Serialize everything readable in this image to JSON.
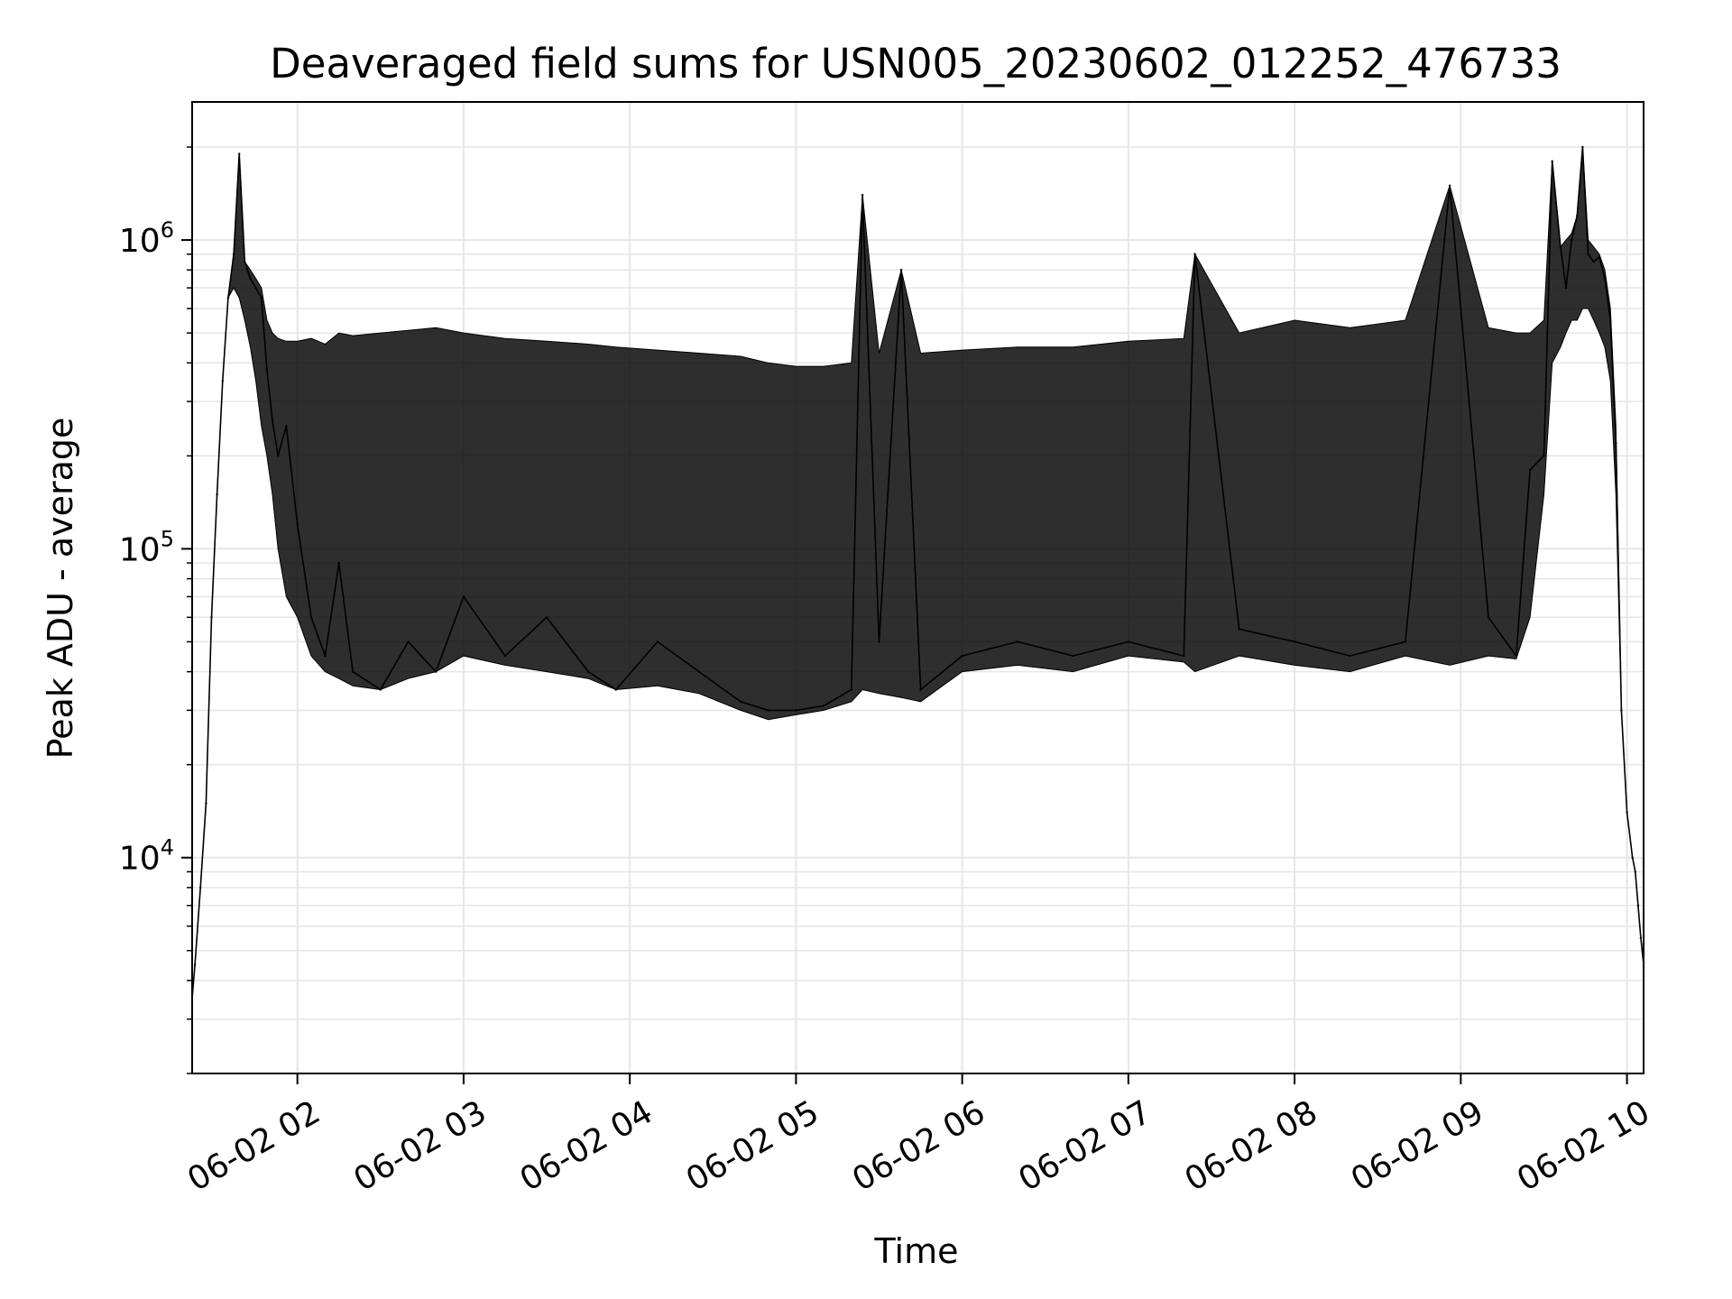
{
  "chart_data": {
    "type": "line",
    "title": "Deaveraged field sums for USN005_20230602_012252_476733",
    "xlabel": "Time",
    "ylabel": "Peak ADU - average",
    "y_scale": "log",
    "grid": true,
    "line_color": "#000000",
    "grid_color": "#e6e6e6",
    "xlim": [
      "2023-06-02 01:22",
      "2023-06-02 10:06"
    ],
    "ylim": [
      2000,
      2800000
    ],
    "x_ticks": [
      {
        "value": "2023-06-02 02:00",
        "label": "06-02 02"
      },
      {
        "value": "2023-06-02 03:00",
        "label": "06-02 03"
      },
      {
        "value": "2023-06-02 04:00",
        "label": "06-02 04"
      },
      {
        "value": "2023-06-02 05:00",
        "label": "06-02 05"
      },
      {
        "value": "2023-06-02 06:00",
        "label": "06-02 06"
      },
      {
        "value": "2023-06-02 07:00",
        "label": "06-02 07"
      },
      {
        "value": "2023-06-02 08:00",
        "label": "06-02 08"
      },
      {
        "value": "2023-06-02 09:00",
        "label": "06-02 09"
      },
      {
        "value": "2023-06-02 10:00",
        "label": "06-02 10"
      }
    ],
    "y_ticks": [
      {
        "value": 10000,
        "base": "10",
        "exponent": "4"
      },
      {
        "value": 100000,
        "base": "10",
        "exponent": "5"
      },
      {
        "value": 1000000,
        "base": "10",
        "exponent": "6"
      }
    ],
    "series": [
      {
        "x": [
          "2023-06-02 01:22",
          "2023-06-02 01:23",
          "2023-06-02 01:25",
          "2023-06-02 01:27",
          "2023-06-02 01:29",
          "2023-06-02 01:31",
          "2023-06-02 01:33",
          "2023-06-02 01:35",
          "2023-06-02 01:37",
          "2023-06-02 01:39",
          "2023-06-02 01:41",
          "2023-06-02 01:43",
          "2023-06-02 01:45",
          "2023-06-02 01:47",
          "2023-06-02 01:49",
          "2023-06-02 01:51",
          "2023-06-02 01:53",
          "2023-06-02 01:56",
          "2023-06-02 02:00",
          "2023-06-02 02:05",
          "2023-06-02 02:10",
          "2023-06-02 02:15",
          "2023-06-02 02:20",
          "2023-06-02 02:30",
          "2023-06-02 02:40",
          "2023-06-02 02:50",
          "2023-06-02 03:00",
          "2023-06-02 03:15",
          "2023-06-02 03:30",
          "2023-06-02 03:45",
          "2023-06-02 03:55",
          "2023-06-02 04:10",
          "2023-06-02 04:25",
          "2023-06-02 04:40",
          "2023-06-02 04:50",
          "2023-06-02 05:00",
          "2023-06-02 05:10",
          "2023-06-02 05:20",
          "2023-06-02 05:24",
          "2023-06-02 05:30",
          "2023-06-02 05:38",
          "2023-06-02 05:45",
          "2023-06-02 06:00",
          "2023-06-02 06:20",
          "2023-06-02 06:40",
          "2023-06-02 07:00",
          "2023-06-02 07:20",
          "2023-06-02 07:24",
          "2023-06-02 07:40",
          "2023-06-02 08:00",
          "2023-06-02 08:20",
          "2023-06-02 08:40",
          "2023-06-02 08:56",
          "2023-06-02 09:10",
          "2023-06-02 09:20",
          "2023-06-02 09:25",
          "2023-06-02 09:30",
          "2023-06-02 09:33",
          "2023-06-02 09:36",
          "2023-06-02 09:38",
          "2023-06-02 09:40",
          "2023-06-02 09:42",
          "2023-06-02 09:44",
          "2023-06-02 09:46",
          "2023-06-02 09:48",
          "2023-06-02 09:50",
          "2023-06-02 09:52",
          "2023-06-02 09:54",
          "2023-06-02 09:56",
          "2023-06-02 09:58",
          "2023-06-02 10:00",
          "2023-06-02 10:02",
          "2023-06-02 10:03",
          "2023-06-02 10:04",
          "2023-06-02 10:05",
          "2023-06-02 10:06"
        ],
        "y": [
          3500,
          4500,
          8000,
          15000,
          60000,
          150000,
          350000,
          650000,
          900000,
          1900000,
          850000,
          750000,
          700000,
          650000,
          380000,
          260000,
          200000,
          250000,
          120000,
          60000,
          45000,
          90000,
          40000,
          35000,
          50000,
          40000,
          70000,
          45000,
          60000,
          40000,
          35000,
          50000,
          40000,
          32000,
          30000,
          30000,
          31000,
          35000,
          1400000,
          50000,
          800000,
          35000,
          45000,
          50000,
          45000,
          50000,
          45000,
          900000,
          55000,
          50000,
          45000,
          50000,
          1500000,
          60000,
          45000,
          180000,
          200000,
          1800000,
          950000,
          700000,
          1000000,
          1200000,
          2000000,
          900000,
          850000,
          880000,
          750000,
          550000,
          220000,
          30000,
          14000,
          10000,
          9000,
          7000,
          5500,
          4500
        ],
        "envelope_top": [
          3500,
          4500,
          8000,
          15000,
          60000,
          150000,
          350000,
          650000,
          900000,
          1900000,
          850000,
          800000,
          750000,
          700000,
          550000,
          500000,
          480000,
          470000,
          470000,
          480000,
          460000,
          500000,
          490000,
          500000,
          510000,
          520000,
          500000,
          480000,
          470000,
          460000,
          450000,
          440000,
          430000,
          420000,
          400000,
          390000,
          390000,
          400000,
          1400000,
          430000,
          800000,
          430000,
          440000,
          450000,
          450000,
          470000,
          480000,
          900000,
          500000,
          550000,
          520000,
          550000,
          1500000,
          520000,
          500000,
          500000,
          550000,
          1800000,
          950000,
          1000000,
          1050000,
          1200000,
          2000000,
          1000000,
          950000,
          900000,
          800000,
          600000,
          250000,
          30000,
          14000,
          10000,
          9000,
          7000,
          5500,
          4500
        ],
        "envelope_bottom": [
          3500,
          4500,
          8000,
          15000,
          60000,
          150000,
          350000,
          650000,
          700000,
          650000,
          550000,
          450000,
          350000,
          250000,
          200000,
          150000,
          100000,
          70000,
          60000,
          45000,
          40000,
          38000,
          36000,
          35000,
          38000,
          40000,
          45000,
          42000,
          40000,
          38000,
          35000,
          36000,
          34000,
          30000,
          28000,
          29000,
          30000,
          32000,
          35000,
          34000,
          33000,
          32000,
          40000,
          42000,
          40000,
          45000,
          43000,
          40000,
          45000,
          42000,
          40000,
          45000,
          42000,
          45000,
          44000,
          60000,
          150000,
          400000,
          450000,
          500000,
          550000,
          550000,
          600000,
          600000,
          550000,
          500000,
          450000,
          350000,
          150000,
          30000,
          14000,
          10000,
          9000,
          7000,
          5500,
          4500
        ]
      }
    ]
  }
}
